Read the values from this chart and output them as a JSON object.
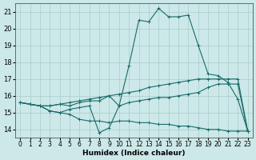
{
  "xlabel": "Humidex (Indice chaleur)",
  "xlim": [
    -0.5,
    23.5
  ],
  "ylim": [
    13.5,
    21.5
  ],
  "yticks": [
    14,
    15,
    16,
    17,
    18,
    19,
    20,
    21
  ],
  "xticks": [
    0,
    1,
    2,
    3,
    4,
    5,
    6,
    7,
    8,
    9,
    10,
    11,
    12,
    13,
    14,
    15,
    16,
    17,
    18,
    19,
    20,
    21,
    22,
    23
  ],
  "bg_color": "#cce8e8",
  "grid_color": "#aacccc",
  "line_color": "#1a6b6b",
  "series1": [
    15.6,
    15.5,
    15.4,
    15.4,
    15.5,
    15.4,
    15.6,
    15.7,
    15.7,
    16.0,
    15.4,
    17.8,
    20.5,
    20.4,
    21.2,
    20.7,
    20.7,
    20.8,
    19.0,
    17.3,
    17.2,
    16.8,
    15.8,
    13.9
  ],
  "series2": [
    15.6,
    15.5,
    15.4,
    15.1,
    15.0,
    15.2,
    15.3,
    15.4,
    13.8,
    14.1,
    15.4,
    15.6,
    15.7,
    15.8,
    15.9,
    15.9,
    16.0,
    16.1,
    16.2,
    16.5,
    16.7,
    16.7,
    16.7,
    13.9
  ],
  "series3": [
    15.6,
    15.5,
    15.4,
    15.4,
    15.5,
    15.6,
    15.7,
    15.8,
    15.9,
    16.0,
    16.1,
    16.2,
    16.3,
    16.5,
    16.6,
    16.7,
    16.8,
    16.9,
    17.0,
    17.0,
    17.0,
    17.0,
    17.0,
    13.9
  ],
  "series4": [
    15.6,
    15.5,
    15.4,
    15.1,
    15.0,
    14.9,
    14.6,
    14.5,
    14.5,
    14.4,
    14.5,
    14.5,
    14.4,
    14.4,
    14.3,
    14.3,
    14.2,
    14.2,
    14.1,
    14.0,
    14.0,
    13.9,
    13.9,
    13.9
  ]
}
